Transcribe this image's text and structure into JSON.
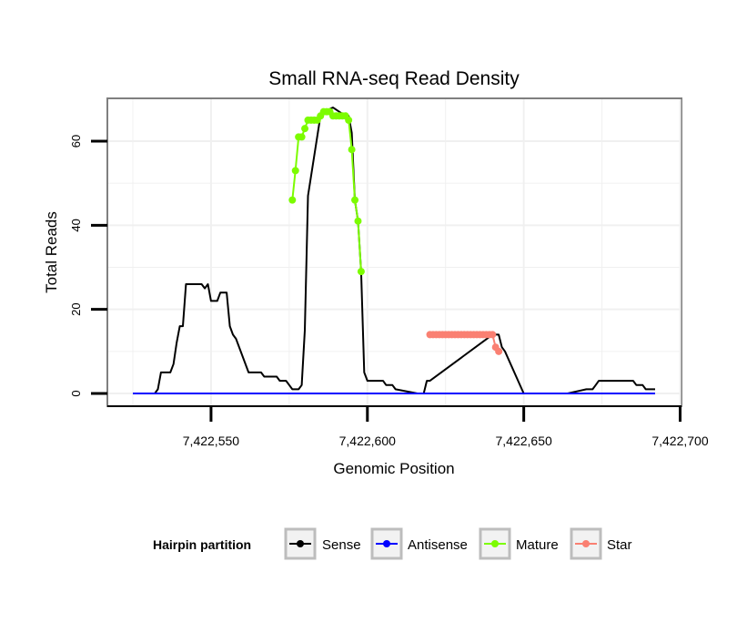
{
  "chart_data": {
    "type": "line",
    "title": "Small RNA-seq Read Density",
    "xlabel": "Genomic Position",
    "ylabel": "Total Reads",
    "xlim": [
      7422520,
      7422707
    ],
    "ylim": [
      0,
      70
    ],
    "xticks": [
      7422550,
      7422600,
      7422650,
      7422700
    ],
    "xtick_labels": [
      "7,422,550",
      "7,422,600",
      "7,422,650",
      "7,422,700"
    ],
    "yticks": [
      0,
      20,
      40,
      60
    ],
    "ytick_labels": [
      "0",
      "20",
      "40",
      "60"
    ],
    "grid": true,
    "legend": {
      "title": "Hairpin partition",
      "placement": "bottom",
      "entries": [
        "Sense",
        "Antisense",
        "Mature",
        "Star"
      ]
    },
    "series": [
      {
        "name": "Sense",
        "color": "#000000",
        "style": "line",
        "x": [
          7422525,
          7422532,
          7422533,
          7422534,
          7422535,
          7422537,
          7422538,
          7422539,
          7422540,
          7422541,
          7422542,
          7422547,
          7422548,
          7422549,
          7422550,
          7422551,
          7422552,
          7422553,
          7422554,
          7422555,
          7422556,
          7422557,
          7422558,
          7422562,
          7422563,
          7422566,
          7422567,
          7422569,
          7422570,
          7422571,
          7422572,
          7422573,
          7422574,
          7422575,
          7422576,
          7422577,
          7422578,
          7422579,
          7422580,
          7422581,
          7422585,
          7422586,
          7422589,
          7422593,
          7422594,
          7422595,
          7422596,
          7422597,
          7422598,
          7422599,
          7422600,
          7422601,
          7422605,
          7422606,
          7422607,
          7422608,
          7422609,
          7422616,
          7422617,
          7422618,
          7422619,
          7422620,
          7422640,
          7422641,
          7422642,
          7422643,
          7422644,
          7422650,
          7422659,
          7422663,
          7422664,
          7422670,
          7422671,
          7422672,
          7422673,
          7422674,
          7422685,
          7422686,
          7422688,
          7422689,
          7422692
        ],
        "y": [
          0,
          0,
          1,
          5,
          5,
          5,
          7,
          12,
          16,
          16,
          26,
          26,
          25,
          26,
          22,
          22,
          22,
          24,
          24,
          24,
          16,
          14,
          13,
          5,
          5,
          5,
          4,
          4,
          4,
          4,
          3,
          3,
          3,
          2,
          1,
          1,
          1,
          2,
          15,
          47,
          66,
          67,
          68,
          66,
          66,
          62,
          46,
          41,
          29,
          5,
          3,
          3,
          3,
          2,
          2,
          2,
          1,
          0,
          0,
          0,
          3,
          3,
          14,
          14,
          14,
          11,
          10,
          0,
          0,
          0,
          0,
          1,
          1,
          1,
          2,
          3,
          3,
          2,
          2,
          1,
          1
        ]
      },
      {
        "name": "Antisense",
        "color": "#0000ff",
        "style": "line",
        "x": [
          7422525,
          7422692
        ],
        "y": [
          0,
          0
        ]
      },
      {
        "name": "Mature",
        "color": "#7cfc00",
        "style": "line+points",
        "x": [
          7422576,
          7422577,
          7422578,
          7422579,
          7422580,
          7422581,
          7422582,
          7422583,
          7422584,
          7422585,
          7422586,
          7422587,
          7422588,
          7422589,
          7422590,
          7422591,
          7422592,
          7422593,
          7422594,
          7422595,
          7422596,
          7422597,
          7422598
        ],
        "y": [
          46,
          53,
          61,
          61,
          63,
          65,
          65,
          65,
          65,
          66,
          67,
          67,
          67,
          66,
          66,
          66,
          66,
          66,
          65,
          58,
          46,
          41,
          29
        ]
      },
      {
        "name": "Star",
        "color": "#fa8072",
        "style": "line+points",
        "x": [
          7422620,
          7422621,
          7422622,
          7422623,
          7422624,
          7422625,
          7422626,
          7422627,
          7422628,
          7422629,
          7422630,
          7422631,
          7422632,
          7422633,
          7422634,
          7422635,
          7422636,
          7422637,
          7422638,
          7422639,
          7422640,
          7422641,
          7422642
        ],
        "y": [
          14,
          14,
          14,
          14,
          14,
          14,
          14,
          14,
          14,
          14,
          14,
          14,
          14,
          14,
          14,
          14,
          14,
          14,
          14,
          14,
          14,
          11,
          10
        ]
      }
    ]
  }
}
